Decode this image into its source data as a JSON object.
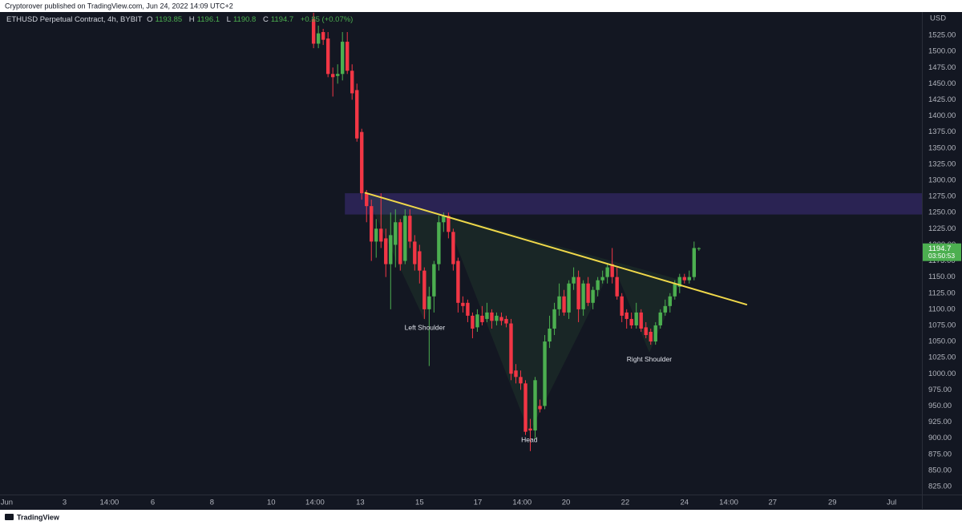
{
  "header": "Cryptorover published on TradingView.com, Jun 24, 2022 14:09 UTC+2",
  "footer": "TradingView",
  "chart_data": {
    "type": "candlestick",
    "symbol": "ETHUSD Perpetual Contract, 4h, BYBIT",
    "ohlc_letters": [
      "O",
      "H",
      "L",
      "C"
    ],
    "change": "+0.85 (+0.07%)",
    "currency": "USD",
    "countdown": "03:50:53",
    "up_color": "#4caf50",
    "down_color": "#f23645",
    "grid": false,
    "x": [
      0,
      1,
      2,
      3,
      4,
      5,
      6,
      7,
      8,
      9,
      10,
      11,
      12,
      13,
      14,
      15,
      16,
      17,
      18,
      19,
      20,
      21,
      22,
      23,
      24,
      25,
      26,
      27,
      28,
      29,
      30,
      31,
      32,
      33,
      34,
      35,
      36,
      37,
      38,
      39,
      40,
      41,
      42,
      43,
      44,
      45,
      46,
      47,
      48,
      49,
      50,
      51,
      52,
      53,
      54,
      55,
      56,
      57,
      58,
      59,
      60,
      61,
      62,
      63,
      64,
      65,
      66,
      67,
      68,
      69,
      70,
      71,
      72,
      73,
      74,
      75,
      76,
      77,
      78,
      79,
      80
    ],
    "open": [
      1550,
      1512,
      1530,
      1520,
      1465,
      1462,
      1465,
      1515,
      1470,
      1440,
      1375,
      1280,
      1260,
      1205,
      1225,
      1210,
      1170,
      1200,
      1235,
      1175,
      1245,
      1205,
      1190,
      1160,
      1100,
      1120,
      1170,
      1235,
      1245,
      1220,
      1175,
      1110,
      1110,
      1090,
      1072,
      1090,
      1085,
      1095,
      1082,
      1088,
      1085,
      1078,
      1005,
      995,
      985,
      915,
      912,
      950,
      950,
      1050,
      1070,
      1100,
      1120,
      1095,
      1140,
      1150,
      1100,
      1140,
      1110,
      1130,
      1145,
      1150,
      1170,
      1150,
      1120,
      1095,
      1085,
      1075,
      1095,
      1072,
      1065,
      1050,
      1075,
      1095,
      1105,
      1120,
      1135,
      1150,
      1145,
      1150,
      1193.85
    ],
    "high": [
      1560,
      1540,
      1535,
      1530,
      1475,
      1480,
      1530,
      1530,
      1480,
      1450,
      1380,
      1285,
      1270,
      1240,
      1280,
      1225,
      1250,
      1255,
      1240,
      1255,
      1255,
      1215,
      1200,
      1165,
      1135,
      1175,
      1245,
      1250,
      1250,
      1225,
      1180,
      1120,
      1115,
      1095,
      1100,
      1105,
      1110,
      1100,
      1095,
      1095,
      1090,
      1085,
      1015,
      1005,
      990,
      930,
      995,
      960,
      1060,
      1090,
      1110,
      1140,
      1130,
      1145,
      1165,
      1160,
      1145,
      1150,
      1135,
      1150,
      1160,
      1170,
      1195,
      1165,
      1125,
      1100,
      1095,
      1110,
      1100,
      1080,
      1070,
      1080,
      1100,
      1115,
      1125,
      1145,
      1155,
      1155,
      1160,
      1205,
      1196.1
    ],
    "low": [
      1505,
      1505,
      1510,
      1460,
      1430,
      1450,
      1455,
      1465,
      1425,
      1360,
      1270,
      1235,
      1175,
      1180,
      1195,
      1150,
      1100,
      1165,
      1160,
      1170,
      1195,
      1160,
      1140,
      1085,
      1012,
      1095,
      1160,
      1220,
      1210,
      1160,
      1095,
      1095,
      1080,
      1055,
      1065,
      1075,
      1080,
      1070,
      1075,
      1075,
      1072,
      990,
      985,
      975,
      905,
      880,
      898,
      940,
      945,
      1040,
      1060,
      1090,
      1090,
      1085,
      1130,
      1080,
      1090,
      1105,
      1100,
      1120,
      1140,
      1140,
      1140,
      1115,
      1080,
      1070,
      1070,
      1070,
      1065,
      1055,
      1045,
      1045,
      1070,
      1090,
      1095,
      1115,
      1125,
      1140,
      1140,
      1145,
      1190.8
    ],
    "close": [
      1512,
      1528,
      1518,
      1465,
      1460,
      1465,
      1515,
      1470,
      1435,
      1365,
      1280,
      1260,
      1205,
      1225,
      1205,
      1170,
      1215,
      1235,
      1170,
      1245,
      1205,
      1170,
      1160,
      1100,
      1120,
      1170,
      1235,
      1245,
      1220,
      1170,
      1110,
      1105,
      1090,
      1070,
      1092,
      1080,
      1095,
      1082,
      1090,
      1082,
      1078,
      1000,
      995,
      985,
      910,
      912,
      990,
      945,
      1050,
      1070,
      1100,
      1120,
      1095,
      1140,
      1150,
      1100,
      1140,
      1110,
      1130,
      1145,
      1150,
      1165,
      1150,
      1120,
      1090,
      1085,
      1075,
      1095,
      1070,
      1060,
      1050,
      1075,
      1095,
      1105,
      1120,
      1140,
      1150,
      1145,
      1150,
      1195,
      1194.7
    ],
    "xlim": [
      -65.1,
      126.3
    ],
    "xticks": [
      {
        "value": -63.7,
        "label": "Jun"
      },
      {
        "value": -51.7,
        "label": "3"
      },
      {
        "value": -42.4,
        "label": "14:00"
      },
      {
        "value": -33.4,
        "label": "6"
      },
      {
        "value": -21.1,
        "label": "8"
      },
      {
        "value": -8.8,
        "label": "10"
      },
      {
        "value": 0.3,
        "label": "14:00"
      },
      {
        "value": 9.7,
        "label": "13"
      },
      {
        "value": 22.0,
        "label": "15"
      },
      {
        "value": 34.1,
        "label": "17"
      },
      {
        "value": 43.3,
        "label": "14:00"
      },
      {
        "value": 52.4,
        "label": "20"
      },
      {
        "value": 64.7,
        "label": "22"
      },
      {
        "value": 77.0,
        "label": "24"
      },
      {
        "value": 86.2,
        "label": "14:00"
      },
      {
        "value": 95.3,
        "label": "27"
      },
      {
        "value": 107.7,
        "label": "29"
      },
      {
        "value": 120.0,
        "label": "Jul"
      }
    ],
    "ylim": [
      812.6,
      1561.1
    ],
    "yticks": [
      {
        "value": 825,
        "label": "825.00"
      },
      {
        "value": 850,
        "label": "850.00"
      },
      {
        "value": 875,
        "label": "875.00"
      },
      {
        "value": 900,
        "label": "900.00"
      },
      {
        "value": 925,
        "label": "925.00"
      },
      {
        "value": 950,
        "label": "950.00"
      },
      {
        "value": 975,
        "label": "975.00"
      },
      {
        "value": 1000,
        "label": "1000.00"
      },
      {
        "value": 1025,
        "label": "1025.00"
      },
      {
        "value": 1050,
        "label": "1050.00"
      },
      {
        "value": 1075,
        "label": "1075.00"
      },
      {
        "value": 1100,
        "label": "1100.00"
      },
      {
        "value": 1125,
        "label": "1125.00"
      },
      {
        "value": 1150,
        "label": "1150.00"
      },
      {
        "value": 1175,
        "label": "1175.00"
      },
      {
        "value": 1200,
        "label": "1200.00"
      },
      {
        "value": 1225,
        "label": "1225.00"
      },
      {
        "value": 1250,
        "label": "1250.00"
      },
      {
        "value": 1275,
        "label": "1275.00"
      },
      {
        "value": 1300,
        "label": "1300.00"
      },
      {
        "value": 1325,
        "label": "1325.00"
      },
      {
        "value": 1350,
        "label": "1350.00"
      },
      {
        "value": 1375,
        "label": "1375.00"
      },
      {
        "value": 1400,
        "label": "1400.00"
      },
      {
        "value": 1425,
        "label": "1425.00"
      },
      {
        "value": 1450,
        "label": "1450.00"
      },
      {
        "value": 1475,
        "label": "1475.00"
      },
      {
        "value": 1500,
        "label": "1500.00"
      },
      {
        "value": 1525,
        "label": "1525.00"
      }
    ],
    "zone": {
      "low": 1247,
      "high": 1280,
      "start": 6.5,
      "color": "#2b2456"
    },
    "trendline": {
      "x": [
        10.6,
        90
      ],
      "y": [
        1281,
        1107
      ],
      "color": "#f0d84a"
    },
    "pattern": [
      {
        "x": 10.6,
        "y": 1281
      },
      {
        "x": 23.1,
        "y": 1082,
        "label": "Left Shoulder"
      },
      {
        "x": 27.3,
        "y": 1244
      },
      {
        "x": 44.8,
        "y": 908,
        "label": "Head"
      },
      {
        "x": 62.2,
        "y": 1169
      },
      {
        "x": 69.7,
        "y": 1033,
        "label": "Right Shoulder"
      },
      {
        "x": 76.4,
        "y": 1145
      }
    ]
  }
}
